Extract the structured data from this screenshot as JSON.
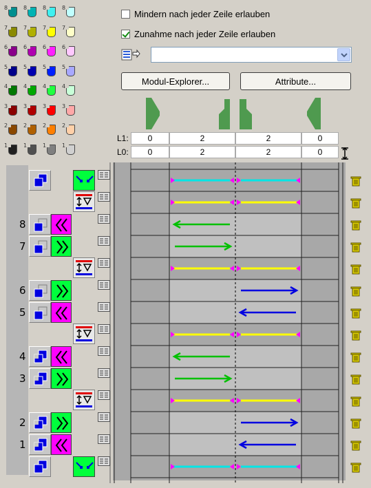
{
  "colors": {
    "panel": "#d4d0c8",
    "grid_dark": "#a8a8a8",
    "grid_light": "#c0c0c0",
    "cyan": "#00e6e6",
    "yellow": "#ffff00",
    "magenta": "#ff00ff",
    "green": "#00c000",
    "blue": "#0000e0",
    "module_green": "#4f9a4f"
  },
  "palette": [
    {
      "n": "8",
      "colors": [
        "#008f8f",
        "#00b3b3",
        "#40f0f0",
        "#c0ffff"
      ]
    },
    {
      "n": "7",
      "colors": [
        "#8a8a00",
        "#b0b000",
        "#ffff00",
        "#ffffc8"
      ]
    },
    {
      "n": "6",
      "colors": [
        "#8a008a",
        "#b000b0",
        "#ff20ff",
        "#ffc8ff"
      ]
    },
    {
      "n": "5",
      "colors": [
        "#00008a",
        "#0000b0",
        "#0020ff",
        "#a8a8ff"
      ]
    },
    {
      "n": "4",
      "colors": [
        "#007800",
        "#00a800",
        "#20ff40",
        "#c8ffd8"
      ]
    },
    {
      "n": "3",
      "colors": [
        "#8a0000",
        "#b00000",
        "#ff0000",
        "#ffa8a8"
      ]
    },
    {
      "n": "2",
      "colors": [
        "#8a4800",
        "#b06000",
        "#ff7f00",
        "#ffd0a8"
      ]
    },
    {
      "n": "1",
      "colors": [
        "#202020",
        "#505050",
        "#808080",
        "#d0d0d0"
      ]
    }
  ],
  "options": {
    "allow_decrease": {
      "label": "Mindern nach jeder Zeile erlauben",
      "checked": false
    },
    "allow_increase": {
      "label": "Zunahme nach jeder Zeile erlauben",
      "checked": true
    }
  },
  "dropdown": {
    "value": ""
  },
  "buttons": {
    "module_explorer": "Modul-Explorer...",
    "attributes": "Attribute..."
  },
  "l1": {
    "label": "L1:",
    "values": [
      "0",
      "2",
      "2",
      "0"
    ]
  },
  "l0": {
    "label": "L0:",
    "values": [
      "0",
      "2",
      "2",
      "0"
    ]
  },
  "rows": [
    {
      "num": "",
      "kind": "knit",
      "ctl": "blue-stack",
      "dir": "none",
      "extra": "dist",
      "line": "cyan",
      "arrow": "dots-both"
    },
    {
      "num": "",
      "kind": "lever",
      "ctl": "",
      "dir": "",
      "extra": "lever",
      "line": "yellow",
      "arrow": "dots-both"
    },
    {
      "num": "8",
      "kind": "knit",
      "ctl": "grey-stack",
      "dir": "left",
      "extra": "",
      "line": "green",
      "arrow": "left-1"
    },
    {
      "num": "7",
      "kind": "knit",
      "ctl": "grey-stack",
      "dir": "right",
      "extra": "",
      "line": "green",
      "arrow": "right-1"
    },
    {
      "num": "",
      "kind": "lever",
      "ctl": "",
      "dir": "",
      "extra": "lever",
      "line": "yellow",
      "arrow": "dots-both"
    },
    {
      "num": "6",
      "kind": "knit",
      "ctl": "grey-stack",
      "dir": "right",
      "extra": "",
      "line": "blue",
      "arrow": "right-2"
    },
    {
      "num": "5",
      "kind": "knit",
      "ctl": "grey-stack",
      "dir": "left",
      "extra": "",
      "line": "blue",
      "arrow": "left-2"
    },
    {
      "num": "",
      "kind": "lever",
      "ctl": "",
      "dir": "",
      "extra": "lever",
      "line": "yellow",
      "arrow": "dots-both"
    },
    {
      "num": "4",
      "kind": "knit",
      "ctl": "blue-corner",
      "dir": "left",
      "extra": "",
      "line": "green",
      "arrow": "left-1"
    },
    {
      "num": "3",
      "kind": "knit",
      "ctl": "blue-corner",
      "dir": "right",
      "extra": "",
      "line": "green",
      "arrow": "right-1"
    },
    {
      "num": "",
      "kind": "lever",
      "ctl": "",
      "dir": "",
      "extra": "lever",
      "line": "yellow",
      "arrow": "dots-both"
    },
    {
      "num": "2",
      "kind": "knit",
      "ctl": "blue-corner",
      "dir": "right",
      "extra": "",
      "line": "blue",
      "arrow": "right-2"
    },
    {
      "num": "1",
      "kind": "knit",
      "ctl": "blue-corner",
      "dir": "left",
      "extra": "",
      "line": "blue",
      "arrow": "left-2"
    },
    {
      "num": "",
      "kind": "knit",
      "ctl": "blue-stack",
      "dir": "none",
      "extra": "dist",
      "line": "cyan",
      "arrow": "dots-both"
    }
  ]
}
